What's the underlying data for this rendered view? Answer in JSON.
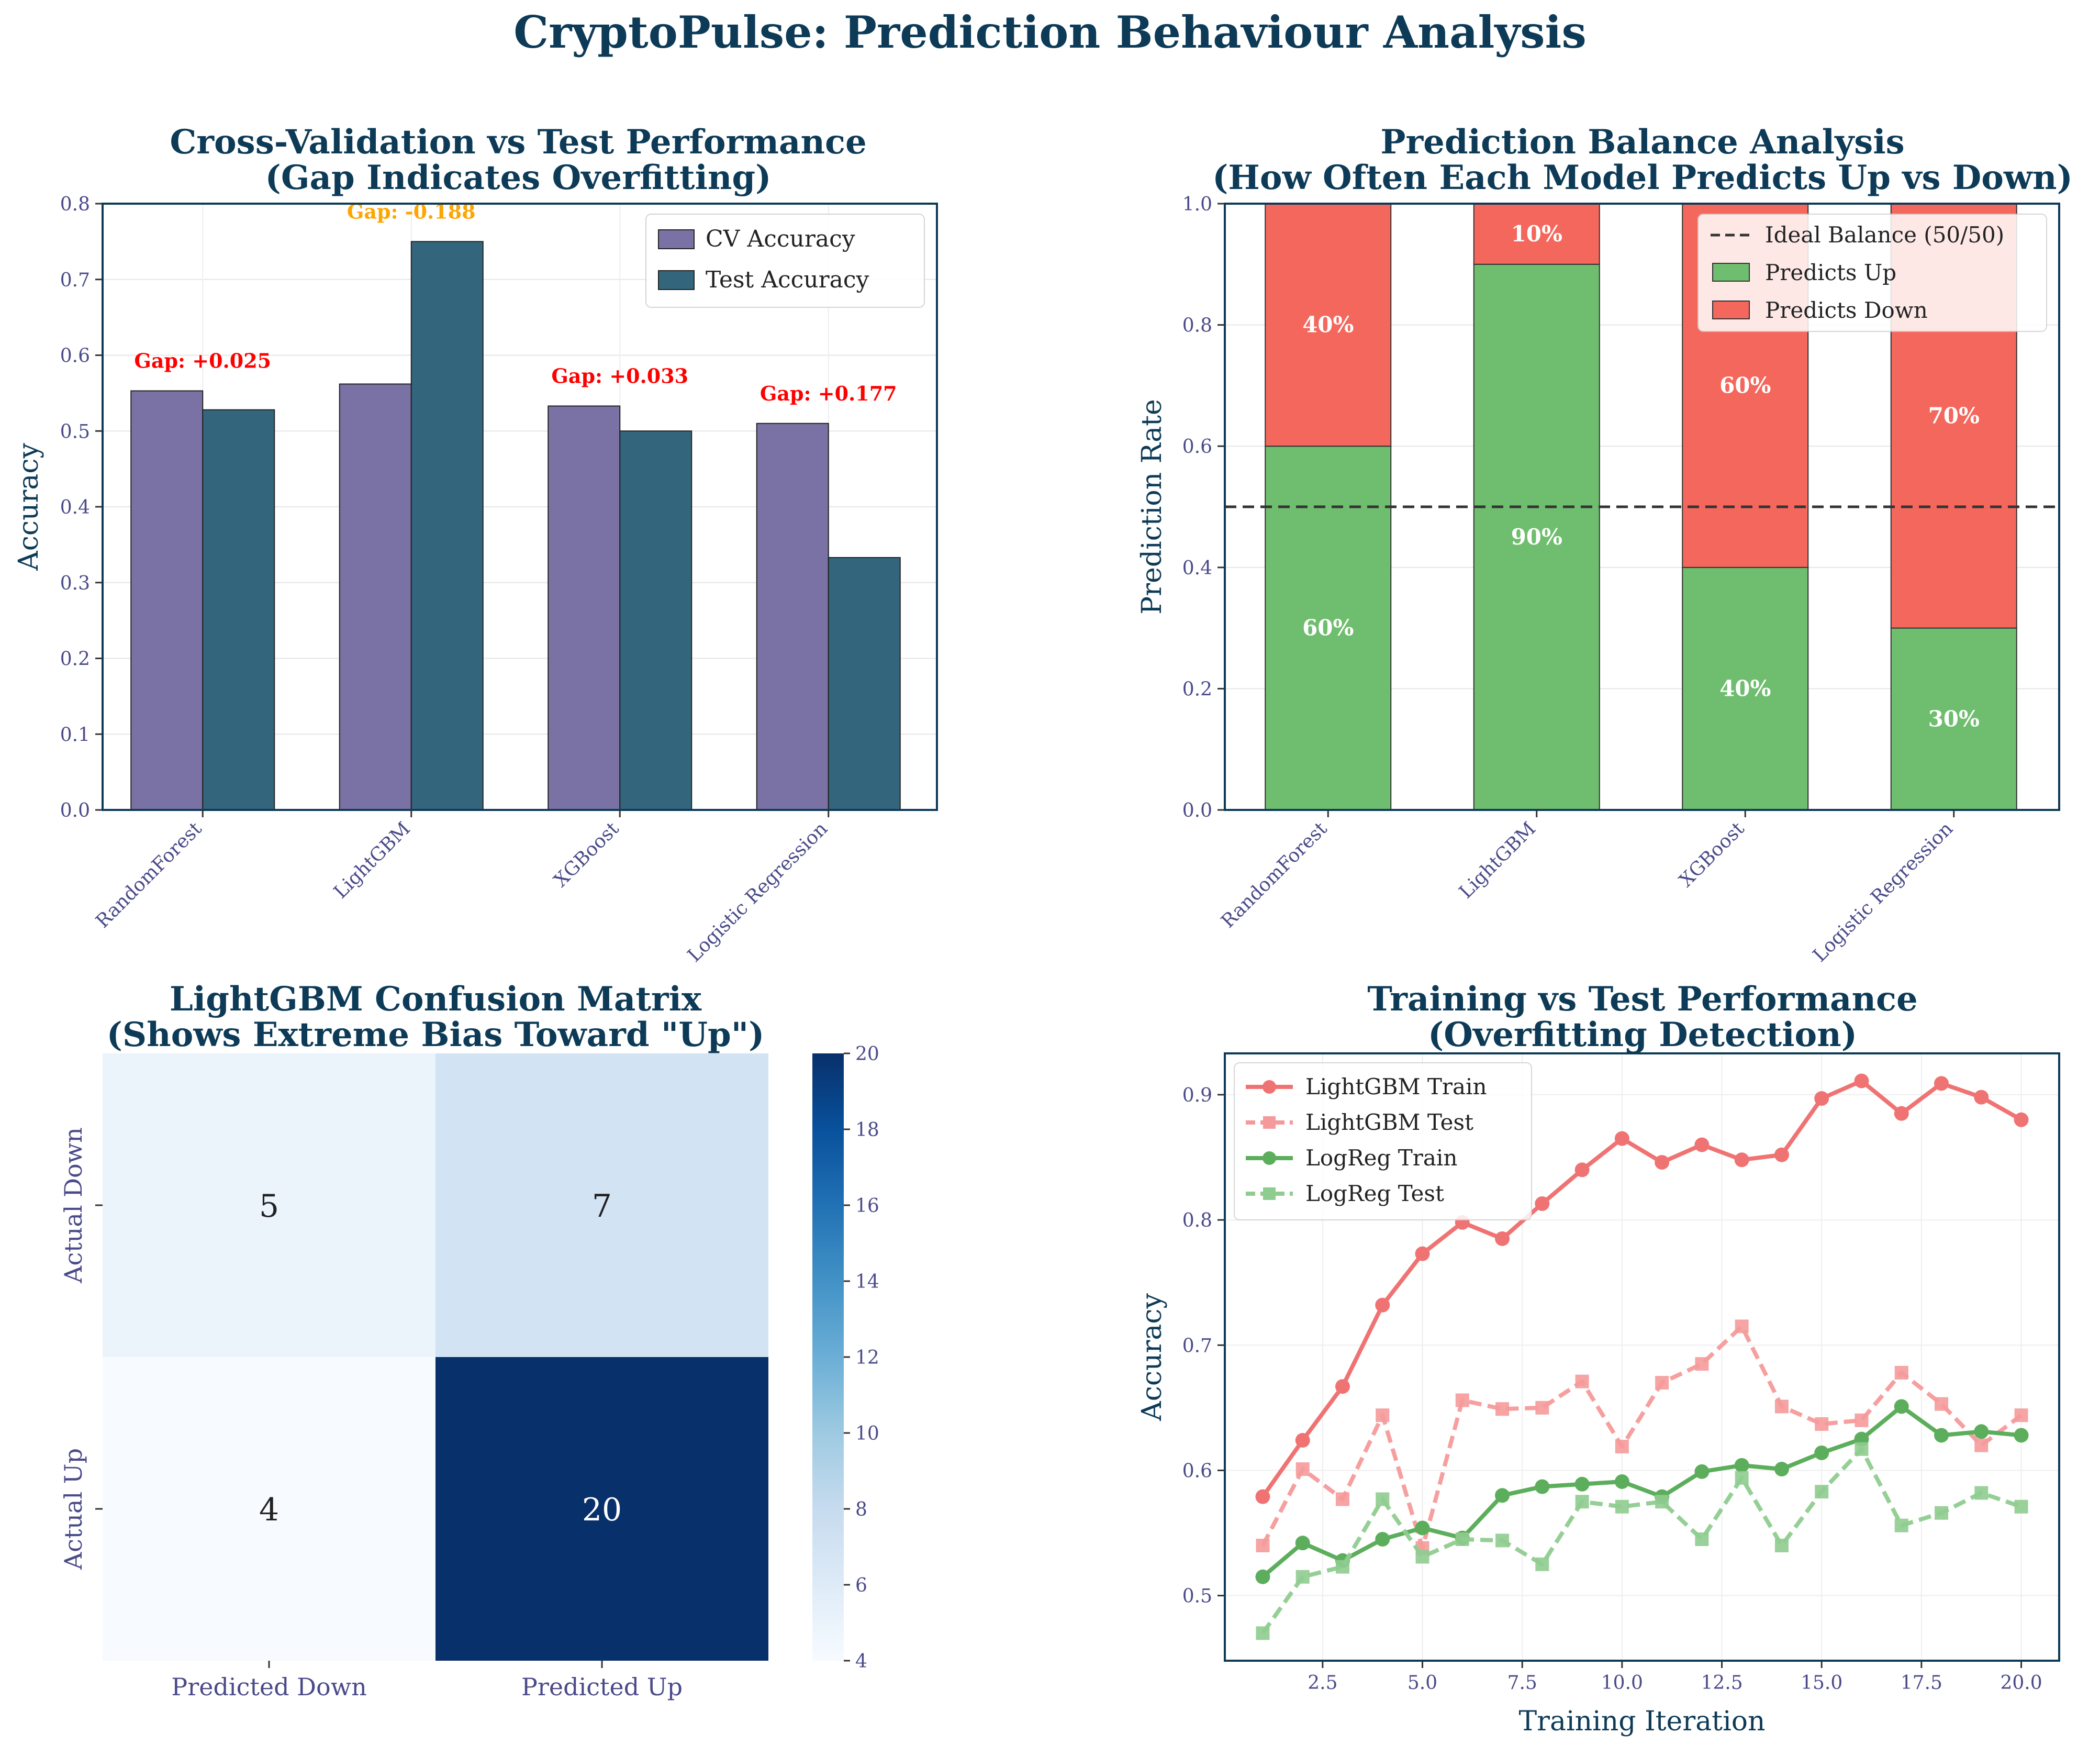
{
  "page_title": "CryptoPulse: Prediction Behaviour Analysis",
  "colors": {
    "title": "#0d3b57",
    "tick": "#4a4a8a",
    "cv_bar": "#7a72a4",
    "test_bar": "#33667d",
    "up_green": "#6fbd6e",
    "down_red": "#f4675d",
    "gap_red": "#ff0000",
    "gap_orange": "#ffa500",
    "ideal_line": "#333333",
    "train_red": "#f07373",
    "test_red": "#f59a9a",
    "train_green": "#5cae5c",
    "test_green": "#8fcc8f"
  },
  "chart_data": [
    {
      "id": "cv_vs_test",
      "type": "bar",
      "title": "Cross-Validation vs Test Performance\n(Gap Indicates Overfitting)",
      "xlabel": "",
      "ylabel": "Accuracy",
      "categories": [
        "RandomForest",
        "LightGBM",
        "XGBoost",
        "Logistic Regression"
      ],
      "series": [
        {
          "name": "CV Accuracy",
          "values": [
            0.553,
            0.562,
            0.533,
            0.51
          ]
        },
        {
          "name": "Test Accuracy",
          "values": [
            0.528,
            0.75,
            0.5,
            0.333
          ]
        }
      ],
      "annotations": [
        "Gap: +0.025",
        "Gap: -0.188",
        "Gap: +0.033",
        "Gap: +0.177"
      ],
      "annotation_colors": [
        "#ff0000",
        "#ffa500",
        "#ff0000",
        "#ff0000"
      ],
      "ylim": [
        0,
        0.8
      ],
      "yticks": [
        "0.0",
        "0.1",
        "0.2",
        "0.3",
        "0.4",
        "0.5",
        "0.6",
        "0.7",
        "0.8"
      ],
      "grid": true,
      "legend": "top-right"
    },
    {
      "id": "prediction_balance",
      "type": "bar",
      "stacked": true,
      "title": "Prediction Balance Analysis\n(How Often Each Model Predicts Up vs Down)",
      "xlabel": "",
      "ylabel": "Prediction Rate",
      "categories": [
        "RandomForest",
        "LightGBM",
        "XGBoost",
        "Logistic Regression"
      ],
      "series": [
        {
          "name": "Predicts Up",
          "values": [
            0.6,
            0.9,
            0.4,
            0.3
          ],
          "labels": [
            "60%",
            "90%",
            "40%",
            "30%"
          ]
        },
        {
          "name": "Predicts Down",
          "values": [
            0.4,
            0.1,
            0.6,
            0.7
          ],
          "labels": [
            "40%",
            "10%",
            "60%",
            "70%"
          ]
        }
      ],
      "reference_line": {
        "name": "Ideal Balance (50/50)",
        "value": 0.5
      },
      "ylim": [
        0,
        1.0
      ],
      "yticks": [
        "0.0",
        "0.2",
        "0.4",
        "0.6",
        "0.8",
        "1.0"
      ],
      "grid": true,
      "legend": "top-right"
    },
    {
      "id": "confusion_matrix",
      "type": "heatmap",
      "title": "LightGBM Confusion Matrix\n(Shows Extreme Bias Toward \"Up\")",
      "row_labels": [
        "Actual Down",
        "Actual Up"
      ],
      "col_labels": [
        "Predicted Down",
        "Predicted Up"
      ],
      "values": [
        [
          5,
          7
        ],
        [
          4,
          20
        ]
      ],
      "colormap": "Blues",
      "colorbar_range": [
        4,
        20
      ],
      "colorbar_ticks": [
        "4",
        "6",
        "8",
        "10",
        "12",
        "14",
        "16",
        "18",
        "20"
      ]
    },
    {
      "id": "training_vs_test",
      "type": "line",
      "title": "Training vs Test Performance\n(Overfitting Detection)",
      "xlabel": "Training Iteration",
      "ylabel": "Accuracy",
      "x": [
        1,
        2,
        3,
        4,
        5,
        6,
        7,
        8,
        9,
        10,
        11,
        12,
        13,
        14,
        15,
        16,
        17,
        18,
        19,
        20
      ],
      "series": [
        {
          "name": "LightGBM Train",
          "values": [
            0.579,
            0.624,
            0.667,
            0.732,
            0.773,
            0.798,
            0.785,
            0.813,
            0.84,
            0.865,
            0.846,
            0.86,
            0.848,
            0.852,
            0.897,
            0.911,
            0.885,
            0.909,
            0.898,
            0.88
          ]
        },
        {
          "name": "LightGBM Test",
          "values": [
            0.54,
            0.601,
            0.577,
            0.644,
            0.538,
            0.656,
            0.649,
            0.65,
            0.671,
            0.619,
            0.67,
            0.685,
            0.715,
            0.651,
            0.637,
            0.64,
            0.678,
            0.653,
            0.62,
            0.644
          ]
        },
        {
          "name": "LogReg Train",
          "values": [
            0.515,
            0.542,
            0.528,
            0.545,
            0.554,
            0.546,
            0.58,
            0.587,
            0.589,
            0.591,
            0.579,
            0.599,
            0.604,
            0.601,
            0.614,
            0.625,
            0.651,
            0.628,
            0.631,
            0.628
          ]
        },
        {
          "name": "LogReg Test",
          "values": [
            0.47,
            0.515,
            0.523,
            0.577,
            0.531,
            0.545,
            0.544,
            0.525,
            0.575,
            0.571,
            0.575,
            0.545,
            0.594,
            0.54,
            0.583,
            0.617,
            0.556,
            0.566,
            0.582,
            0.571
          ]
        }
      ],
      "xlim": [
        0.05,
        20.95
      ],
      "ylim": [
        0.448,
        0.933
      ],
      "xticks": [
        "2.5",
        "5.0",
        "7.5",
        "10.0",
        "12.5",
        "15.0",
        "17.5",
        "20.0"
      ],
      "yticks": [
        "0.5",
        "0.6",
        "0.7",
        "0.8",
        "0.9"
      ],
      "grid": true,
      "legend": "top-left"
    }
  ]
}
